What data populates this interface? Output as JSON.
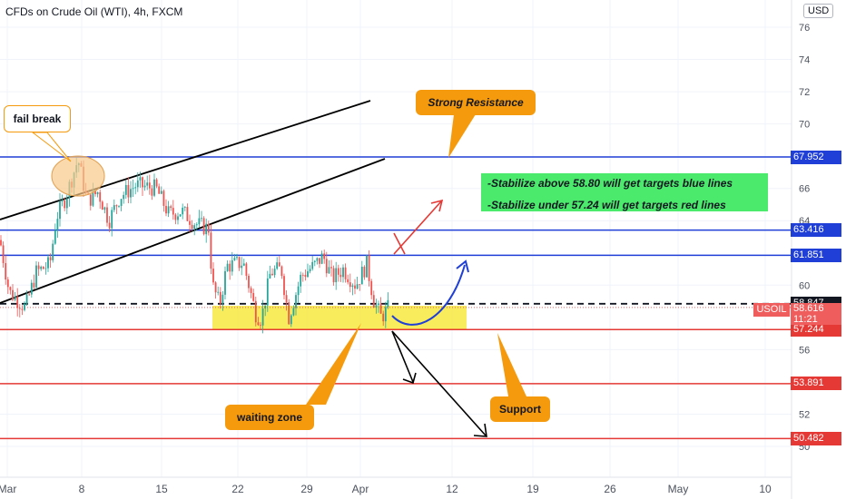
{
  "chart_data": {
    "type": "candlestick",
    "title": "CFDs on Crude Oil (WTI), 4h, FXCM",
    "currency": "USD",
    "symbol": "USOIL",
    "current_price": "58.616",
    "countdown": "11:21",
    "y_ticks": [
      "76",
      "74",
      "72",
      "70",
      "66",
      "64",
      "60",
      "56",
      "52",
      "50"
    ],
    "x_ticks": [
      "Mar",
      "8",
      "15",
      "22",
      "29",
      "Apr",
      "12",
      "19",
      "26",
      "May",
      "10"
    ],
    "ylim": [
      49.2,
      77.5
    ],
    "horizontal_levels": [
      {
        "value": 67.952,
        "label": "67.952",
        "color": "#1f3fd6"
      },
      {
        "value": 63.416,
        "label": "63.416",
        "color": "#1f3fd6"
      },
      {
        "value": 61.851,
        "label": "61.851",
        "color": "#1f3fd6"
      },
      {
        "value": 58.847,
        "label": "58.847",
        "color": "#131722",
        "dashed": true
      },
      {
        "value": 57.244,
        "label": "57.244",
        "color": "#e53935"
      },
      {
        "value": 53.891,
        "label": "53.891",
        "color": "#e53935"
      },
      {
        "value": 50.482,
        "label": "50.482",
        "color": "#e53935"
      }
    ],
    "annotations": {
      "fail_break": "fail break",
      "strong_resistance": "Strong Resistance",
      "waiting_zone": "waiting zone",
      "support": "Support",
      "note_blue": "-Stabilize above 58.80 will get targets  blue lines",
      "note_red": "-Stabilize under 57.24 will get targets red lines"
    },
    "grid": true,
    "colors": {
      "up": "#26a69a",
      "down": "#ef5350",
      "blue_level": "#1f3fd6",
      "red_level": "#e53935",
      "callout": "#f59a0c",
      "zone": "#f7e840",
      "note_box": "#4cea6c"
    }
  }
}
